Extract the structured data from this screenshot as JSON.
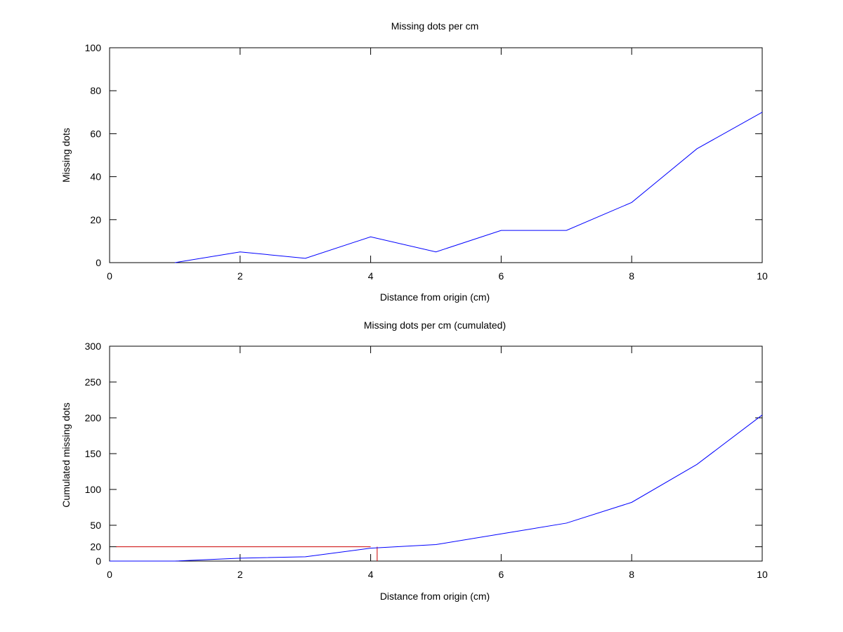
{
  "colors": {
    "series": "#0000ff",
    "reference": "#cc0000",
    "axes": "#000000",
    "background": "#ffffff"
  },
  "chart_data": [
    {
      "type": "line",
      "title": "Missing dots per cm",
      "xlabel": "Distance from origin (cm)",
      "ylabel": "Missing dots",
      "xlim": [
        0,
        10
      ],
      "ylim": [
        0,
        100
      ],
      "xticks": [
        "0",
        "2",
        "4",
        "6",
        "8",
        "10"
      ],
      "yticks": [
        "0",
        "20",
        "40",
        "60",
        "80",
        "100"
      ],
      "grid": false,
      "series": [
        {
          "x": [
            1,
            2,
            3,
            4,
            5,
            6,
            7,
            8,
            9,
            10
          ],
          "y": [
            0,
            5,
            2,
            12,
            5,
            15,
            15,
            28,
            53,
            70
          ]
        }
      ]
    },
    {
      "type": "line",
      "title": "Missing dots per cm (cumulated)",
      "xlabel": "Distance from origin (cm)",
      "ylabel": "Cumulated missing dots",
      "xlim": [
        0,
        10
      ],
      "ylim": [
        0,
        300
      ],
      "xticks": [
        "0",
        "2",
        "4",
        "6",
        "8",
        "10"
      ],
      "yticks": [
        "0",
        "20",
        "50",
        "100",
        "150",
        "200",
        "250",
        "300"
      ],
      "grid": false,
      "series": [
        {
          "x": [
            0,
            1,
            2,
            3,
            4,
            5,
            6,
            7,
            8,
            9,
            10
          ],
          "y": [
            0,
            0,
            4,
            6,
            18,
            23,
            38,
            53,
            82,
            135,
            204
          ]
        }
      ],
      "annotations": {
        "reference_y": 20,
        "reference_x": 4.1
      }
    }
  ]
}
